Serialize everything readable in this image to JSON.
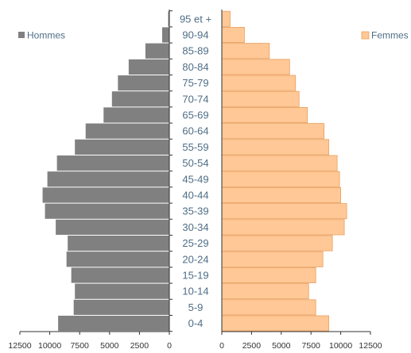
{
  "chart_data": {
    "type": "bar",
    "orientation": "population-pyramid",
    "categories": [
      "0-4",
      "5-9",
      "10-14",
      "15-19",
      "20-24",
      "25-29",
      "30-34",
      "35-39",
      "40-44",
      "45-49",
      "50-54",
      "55-59",
      "60-64",
      "65-69",
      "70-74",
      "75-79",
      "80-84",
      "85-89",
      "90-94",
      "95 et +"
    ],
    "series": [
      {
        "name": "Hommes",
        "side": "left",
        "color": "#808080",
        "values": [
          9300,
          8000,
          7900,
          8200,
          8600,
          8500,
          9500,
          10400,
          10600,
          10200,
          9400,
          7900,
          7000,
          5500,
          4800,
          4300,
          3400,
          2000,
          600,
          100
        ]
      },
      {
        "name": "Femmes",
        "side": "right",
        "color": "#ffc896",
        "values": [
          9000,
          7900,
          7300,
          7900,
          8500,
          9300,
          10300,
          10500,
          10000,
          9900,
          9700,
          9000,
          8600,
          7200,
          6500,
          6200,
          5700,
          4000,
          1900,
          700
        ]
      }
    ],
    "left_axis": {
      "ticks": [
        12500,
        10000,
        7500,
        5000,
        2500,
        0
      ],
      "range": [
        0,
        12500
      ]
    },
    "right_axis": {
      "ticks": [
        0,
        2500,
        5000,
        7500,
        10000,
        12500
      ],
      "range": [
        0,
        12500
      ]
    },
    "legend": [
      "Hommes",
      "Femmes"
    ],
    "title": "",
    "xlabel": "",
    "ylabel": ""
  }
}
